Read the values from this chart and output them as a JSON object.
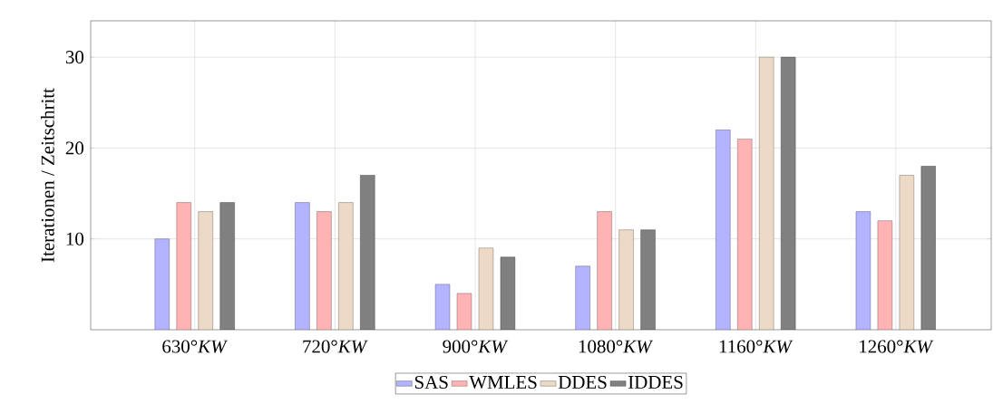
{
  "chart_data": {
    "type": "bar",
    "ylabel": "Iterationen / Zeitschritt",
    "categories": [
      "630°*KW*",
      "720°*KW*",
      "900°*KW*",
      "1080°*KW*",
      "1160°*KW*",
      "1260°*KW*"
    ],
    "series": [
      {
        "name": "SAS",
        "color": "#b3b3ff",
        "values": [
          10,
          14,
          5,
          7,
          22,
          13
        ]
      },
      {
        "name": "WMLES",
        "color": "#ffb3b3",
        "values": [
          14,
          13,
          4,
          13,
          21,
          12
        ]
      },
      {
        "name": "DDES",
        "color": "#ecd9c6",
        "values": [
          13,
          14,
          9,
          11,
          30,
          17
        ]
      },
      {
        "name": "IDDES",
        "color": "#808080",
        "values": [
          14,
          17,
          8,
          11,
          30,
          18
        ]
      }
    ],
    "ylim": [
      0,
      34
    ],
    "yticks": [
      10,
      20,
      30
    ],
    "grid": true,
    "legend": "bottom"
  }
}
